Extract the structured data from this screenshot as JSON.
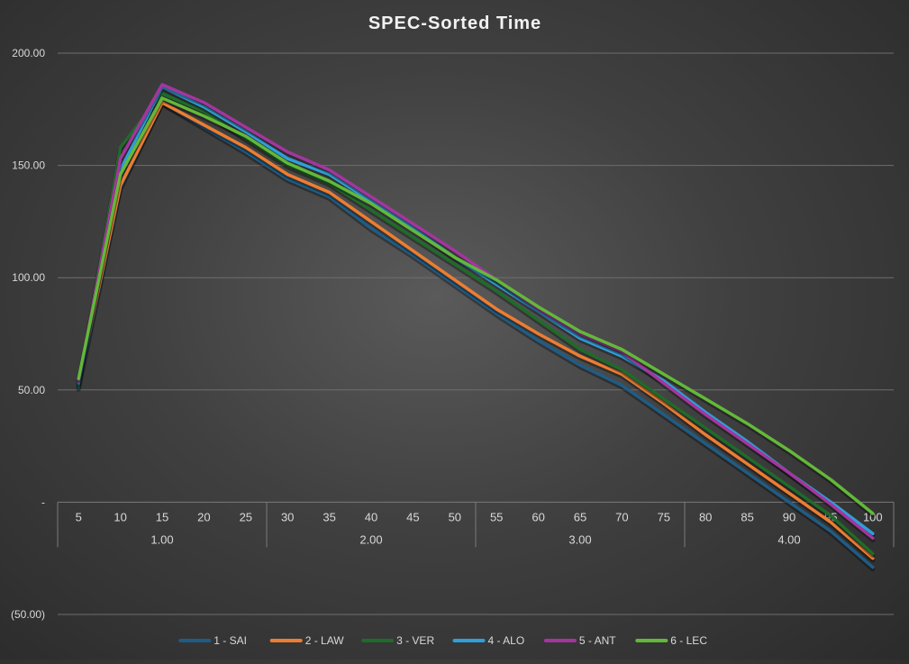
{
  "chart_data": {
    "type": "line",
    "title": "SPEC-Sorted Time",
    "xlabel": "",
    "ylabel": "",
    "x": [
      "5",
      "10",
      "15",
      "20",
      "25",
      "30",
      "35",
      "40",
      "45",
      "50",
      "55",
      "60",
      "65",
      "70",
      "75",
      "80",
      "85",
      "90",
      "95",
      "100"
    ],
    "x_groups": [
      {
        "label": "1.00",
        "from": 0,
        "to": 4
      },
      {
        "label": "2.00",
        "from": 5,
        "to": 9
      },
      {
        "label": "3.00",
        "from": 10,
        "to": 14
      },
      {
        "label": "4.00",
        "from": 15,
        "to": 19
      }
    ],
    "y_ticks": [
      {
        "value": 200,
        "label": "200.00"
      },
      {
        "value": 150,
        "label": "150.00"
      },
      {
        "value": 100,
        "label": "100.00"
      },
      {
        "value": 50,
        "label": "50.00"
      },
      {
        "value": 0,
        "label": "-"
      },
      {
        "value": -50,
        "label": "(50.00)"
      }
    ],
    "ylim": [
      -50,
      200
    ],
    "grid": true,
    "legend_position": "bottom",
    "series": [
      {
        "name": "1 - SAI",
        "color": "#1f5c85",
        "values": [
          51,
          140,
          178,
          167,
          156,
          144,
          136,
          122,
          110,
          97,
          84,
          72,
          61,
          52,
          39,
          26,
          13,
          0,
          -13,
          -29
        ]
      },
      {
        "name": "2 - LAW",
        "color": "#ed7d31",
        "values": [
          53,
          141,
          178,
          168,
          158,
          146,
          138,
          125,
          112,
          99,
          86,
          75,
          65,
          57,
          44,
          30,
          17,
          4,
          -9,
          -25
        ]
      },
      {
        "name": "3 - VER",
        "color": "#1f6b2a",
        "values": [
          52,
          158,
          182,
          174,
          162,
          150,
          142,
          130,
          118,
          106,
          94,
          81,
          68,
          59,
          46,
          33,
          20,
          7,
          -6,
          -23
        ]
      },
      {
        "name": "4 - ALO",
        "color": "#2e9fd8",
        "values": [
          53,
          148,
          185,
          176,
          165,
          153,
          146,
          134,
          122,
          109,
          97,
          85,
          73,
          65,
          54,
          40,
          27,
          13,
          0,
          -14
        ]
      },
      {
        "name": "5 - ANT",
        "color": "#a3369e",
        "values": [
          54,
          153,
          186,
          178,
          167,
          156,
          148,
          136,
          124,
          112,
          99,
          86,
          75,
          67,
          53,
          39,
          26,
          13,
          -1,
          -16
        ]
      },
      {
        "name": "6 - LEC",
        "color": "#63b83a",
        "values": [
          55,
          146,
          180,
          172,
          163,
          151,
          143,
          133,
          121,
          109,
          99,
          87,
          76,
          68,
          57,
          46,
          35,
          23,
          10,
          -5
        ]
      }
    ]
  }
}
